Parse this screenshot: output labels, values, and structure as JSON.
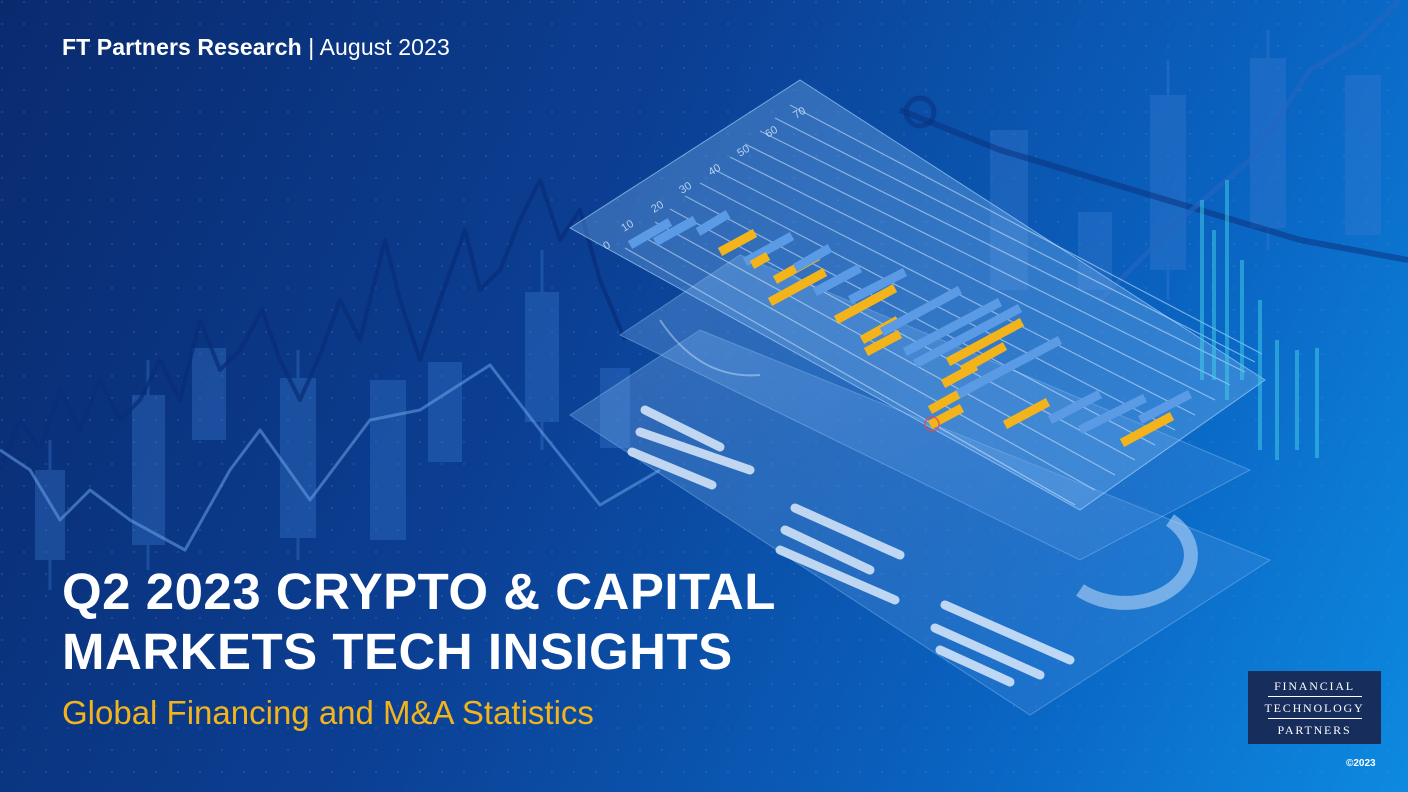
{
  "header": {
    "brand": "FT Partners Research",
    "separator": "|",
    "date": "August 2023"
  },
  "title": {
    "line1": "Q2 2023 CRYPTO & CAPITAL",
    "line2": "MARKETS TECH INSIGHTS"
  },
  "subtitle": "Global Financing and M&A Statistics",
  "logo": {
    "line1": "FINANCIAL",
    "line2": "TECHNOLOGY",
    "line3": "PARTNERS"
  },
  "copyright": "©2023",
  "illustration": {
    "axis_ticks": [
      "0",
      "10",
      "20",
      "30",
      "40",
      "50",
      "60",
      "70"
    ],
    "icons": [
      "isometric-chart-icon",
      "candlestick-chart-icon"
    ]
  },
  "colors": {
    "background": "#0b3f93",
    "accent": "#f3b41b",
    "logo_bg": "#172d5c",
    "text": "#ffffff"
  }
}
